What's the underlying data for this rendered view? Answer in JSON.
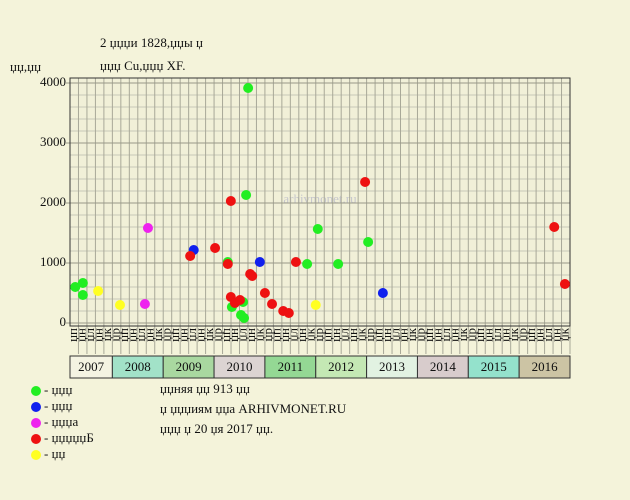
{
  "chart_data": {
    "type": "scatter",
    "title": "2 џџџи 1828,џџы џ",
    "subtitle": "џџџ Cu,џџџ XF.",
    "y_label": "џџ,џџ",
    "watermark": "arhivmonet.ru",
    "xlim": [
      2007.1667,
      2017
    ],
    "ylim": [
      0,
      4000
    ],
    "yticks": [
      0,
      1000,
      2000,
      3000,
      4000
    ],
    "ygrid": [
      200,
      400,
      600,
      800,
      1200,
      1400,
      1600,
      1800,
      2200,
      2400,
      2600,
      2800,
      3200,
      3400,
      3600,
      3800
    ],
    "grid": true,
    "column_labels": [
      "џп",
      "џн",
      "џл",
      "џн",
      "џк",
      "џр",
      "џп",
      "џн",
      "џл",
      "џн",
      "џк",
      "џр",
      "џп",
      "џн",
      "џл",
      "џн",
      "џк",
      "џр",
      "џп",
      "џн",
      "џл",
      "џн",
      "џк",
      "џр",
      "џп",
      "џн",
      "џл",
      "џн",
      "џк",
      "џр",
      "џп",
      "џн",
      "џл",
      "џн",
      "џк",
      "џр",
      "џп",
      "џн",
      "џл",
      "џн",
      "џк",
      "џр",
      "џп",
      "џн",
      "џл",
      "џн",
      "џк",
      "џр",
      "џп",
      "џн",
      "џл",
      "џн",
      "џк",
      "џр",
      "џп",
      "џн",
      "џл",
      "џн",
      "џк"
    ],
    "year_bands": [
      {
        "label": "2007",
        "color": "#f4f3e2"
      },
      {
        "label": "2008",
        "color": "#a2e2c8"
      },
      {
        "label": "2009",
        "color": "#a9d8a0"
      },
      {
        "label": "2010",
        "color": "#dcd4d2"
      },
      {
        "label": "2011",
        "color": "#94d894"
      },
      {
        "label": "2012",
        "color": "#c4e8b4"
      },
      {
        "label": "2013",
        "color": "#e2f2e2"
      },
      {
        "label": "2014",
        "color": "#d8cccc"
      },
      {
        "label": "2015",
        "color": "#94e2cc"
      },
      {
        "label": "2016",
        "color": "#ccc4a4"
      }
    ],
    "series": [
      {
        "name": "- џџџ",
        "color": "#22ee22",
        "x": [
          2007.27,
          2007.42,
          2007.42,
          2010.27,
          2010.35,
          2010.53,
          2010.59,
          2010.57,
          2010.67,
          2010.63,
          2011.83,
          2012.04,
          2012.44,
          2013.03
        ],
        "values": [
          600,
          667,
          467,
          1017,
          267,
          133,
          83,
          350,
          3917,
          2133,
          983,
          1567,
          983,
          1350
        ]
      },
      {
        "name": "- џџџ",
        "color": "#1020ee",
        "x": [
          2009.6,
          2010.9,
          2013.32
        ],
        "values": [
          1217,
          1017,
          500
        ]
      },
      {
        "name": "- џџџа",
        "color": "#ee22ee",
        "x": [
          2008.7,
          2008.64
        ],
        "values": [
          1583,
          317
        ]
      },
      {
        "name": "- џџџџџБ",
        "color": "#ee1111",
        "x": [
          2009.53,
          2010.02,
          2010.27,
          2010.33,
          2010.33,
          2010.41,
          2010.51,
          2010.71,
          2010.75,
          2011.0,
          2011.14,
          2011.36,
          2011.47,
          2011.61,
          2012.97,
          2016.69,
          2016.9
        ],
        "values": [
          1117,
          1250,
          983,
          2033,
          433,
          333,
          383,
          817,
          783,
          500,
          317,
          200,
          167,
          1017,
          2350,
          1600,
          650
        ]
      },
      {
        "name": "- џџ",
        "color": "#ffff22",
        "x": [
          2007.72,
          2008.15,
          2012.0
        ],
        "values": [
          533,
          300,
          300
        ]
      }
    ],
    "notes": [
      "џџняя џџ 913 џџ",
      "џ џџџиям џџа ARHIVMONET.RU",
      "џџџ џ 20 џя 2017 џџ."
    ]
  }
}
